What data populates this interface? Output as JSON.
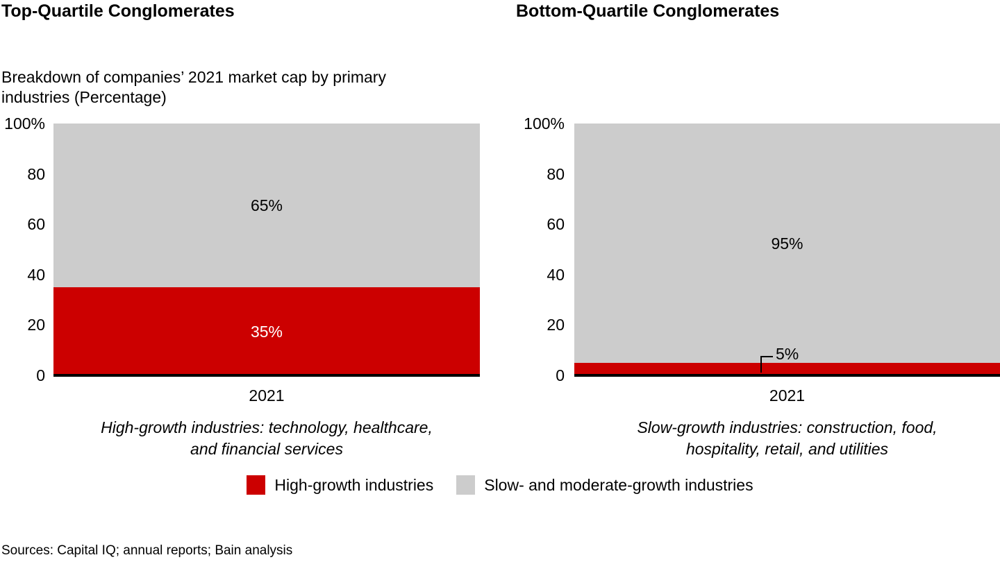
{
  "page": {
    "background": "#ffffff",
    "sources": "Sources: Capital IQ; annual reports; Bain analysis"
  },
  "colors": {
    "high_growth": "#cc0000",
    "slow_growth": "#cccccc",
    "baseline": "#000000",
    "text": "#000000"
  },
  "legend": {
    "items": [
      {
        "label": "High-growth industries",
        "color_key": "high_growth",
        "swatch": "red-square"
      },
      {
        "label": "Slow- and moderate-growth industries",
        "color_key": "slow_growth",
        "swatch": "gray-square"
      }
    ]
  },
  "chart_data": [
    {
      "type": "bar",
      "stacked": true,
      "title": "Top-Quartile Conglomerates",
      "subtitle_lines": [
        "Breakdown of companies’ 2021 market cap by primary",
        "industries (Percentage)"
      ],
      "categories": [
        "2021"
      ],
      "ylim": [
        0,
        100
      ],
      "ytick_labels": [
        "100%",
        "80",
        "60",
        "40",
        "20",
        "0"
      ],
      "ytick_values": [
        100,
        80,
        60,
        40,
        20,
        0
      ],
      "grid": false,
      "series": [
        {
          "name": "High-growth industries",
          "values": [
            35
          ],
          "color_key": "high_growth",
          "data_label": "35%",
          "label_placement": "inside",
          "label_color": "#ffffff"
        },
        {
          "name": "Slow- and moderate-growth industries",
          "values": [
            65
          ],
          "color_key": "slow_growth",
          "data_label": "65%",
          "label_placement": "inside",
          "label_color": "#000000"
        }
      ],
      "caption_lines": [
        "High-growth industries: technology, healthcare,",
        "and financial services"
      ]
    },
    {
      "type": "bar",
      "stacked": true,
      "title": "Bottom-Quartile Conglomerates",
      "categories": [
        "2021"
      ],
      "ylim": [
        0,
        100
      ],
      "ytick_labels": [
        "100%",
        "80",
        "60",
        "40",
        "20",
        "0"
      ],
      "ytick_values": [
        100,
        80,
        60,
        40,
        20,
        0
      ],
      "grid": false,
      "series": [
        {
          "name": "High-growth industries",
          "values": [
            5
          ],
          "color_key": "high_growth",
          "data_label": "5%",
          "label_placement": "callout",
          "label_color": "#000000"
        },
        {
          "name": "Slow- and moderate-growth industries",
          "values": [
            95
          ],
          "color_key": "slow_growth",
          "data_label": "95%",
          "label_placement": "inside",
          "label_color": "#000000"
        }
      ],
      "caption_lines": [
        "Slow-growth industries: construction, food,",
        "hospitality, retail, and utilities"
      ]
    }
  ]
}
